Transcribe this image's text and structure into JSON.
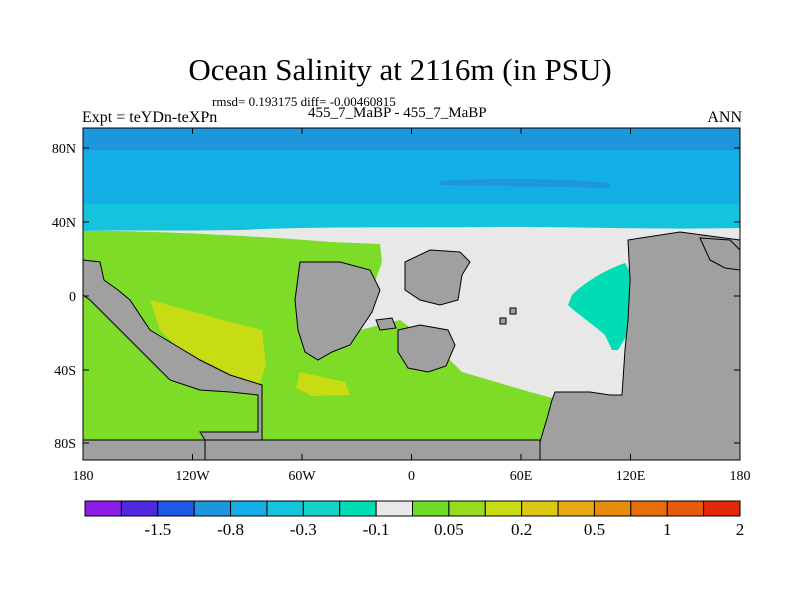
{
  "title": "Ocean Salinity at 2116m (in PSU)",
  "stats_line": "rmsd= 0.193175 diff= -0.00460815",
  "left_label": "Expt = teYDn-teXPn",
  "center_label": "455_7_MaBP - 455_7_MaBP",
  "right_label": "ANN",
  "x_ticks": [
    "180",
    "120W",
    "60W",
    "0",
    "60E",
    "120E",
    "180"
  ],
  "y_ticks": [
    "80N",
    "40N",
    "0",
    "40S",
    "80S"
  ],
  "colorbar": {
    "colors": [
      "#8a1ee8",
      "#5028e0",
      "#1e5ae6",
      "#1e96dc",
      "#14afe6",
      "#14c3dc",
      "#14d2c8",
      "#00dcb4",
      "#e8e8e8",
      "#6edc28",
      "#96dc1e",
      "#c8dc14",
      "#dcc814",
      "#e6aa14",
      "#e68c0a",
      "#e66e0a",
      "#e65a0a",
      "#e6280a"
    ],
    "labels": [
      "-1.5",
      "-0.8",
      "-0.3",
      "-0.1",
      "0.05",
      "0.2",
      "0.5",
      "1",
      "2"
    ]
  },
  "colors": {
    "land": "#a0a0a0",
    "ocean_north_dark": "#1e96dc",
    "ocean_north": "#14afe6",
    "ocean_north_light": "#14c3dc",
    "near_zero": "#e8e8e8",
    "green": "#7ddc28",
    "yellow_green": "#c8dc14",
    "teal": "#00dcb4"
  }
}
